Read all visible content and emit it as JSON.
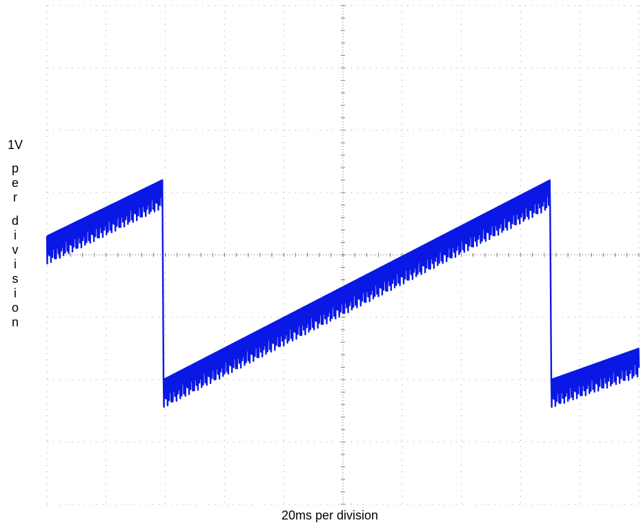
{
  "chart_data": {
    "type": "line",
    "xlabel": "20ms per division",
    "ylabel_first": "1V",
    "ylabel_rest": "per division",
    "x_divisions": 10,
    "y_divisions": 8,
    "xlim": [
      0,
      10
    ],
    "ylim": [
      -4,
      4
    ],
    "grid": true,
    "series": [
      {
        "color": "#0a18e6",
        "description_points": [
          {
            "x": 0.0,
            "y": 0.3
          },
          {
            "x": 1.95,
            "y": 1.2
          },
          {
            "x": 1.97,
            "y": -2.0
          },
          {
            "x": 8.5,
            "y": 1.2
          },
          {
            "x": 8.52,
            "y": -2.0
          },
          {
            "x": 10.0,
            "y": -1.5
          }
        ],
        "ripple_amplitude_div": 0.45
      }
    ]
  }
}
